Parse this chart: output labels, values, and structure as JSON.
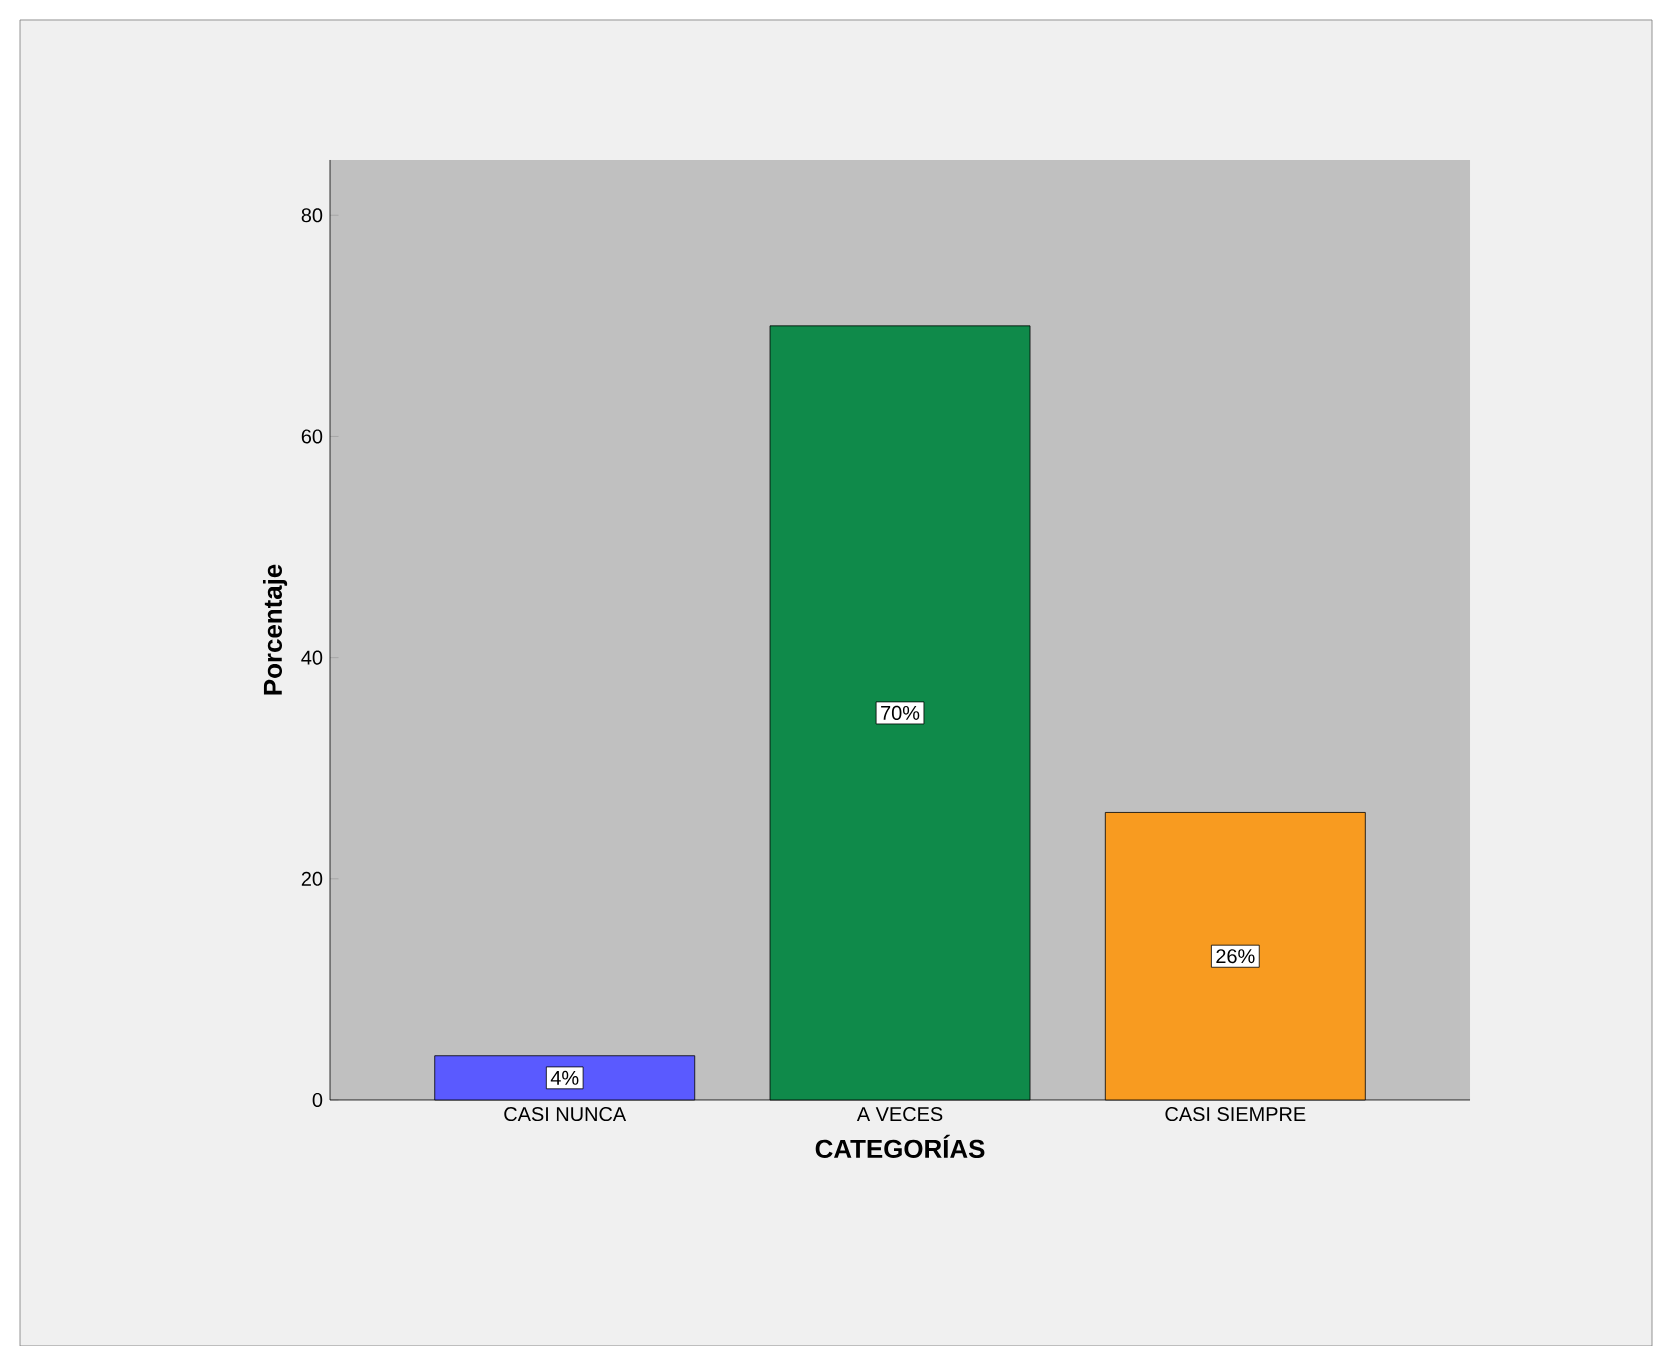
{
  "chart_data": {
    "type": "bar",
    "xlabel": "CATEGORÍAS",
    "ylabel": "Porcentaje",
    "categories": [
      "CASI NUNCA",
      "A VECES",
      "CASI SIEMPRE"
    ],
    "values": [
      4,
      70,
      26
    ],
    "colors": [
      "#5a5aff",
      "#0f8a4a",
      "#f89b20"
    ],
    "value_labels": [
      "4%",
      "70%",
      "26%"
    ],
    "ylim": [
      0,
      85
    ],
    "yticks": [
      0,
      20,
      40,
      60,
      80
    ]
  }
}
